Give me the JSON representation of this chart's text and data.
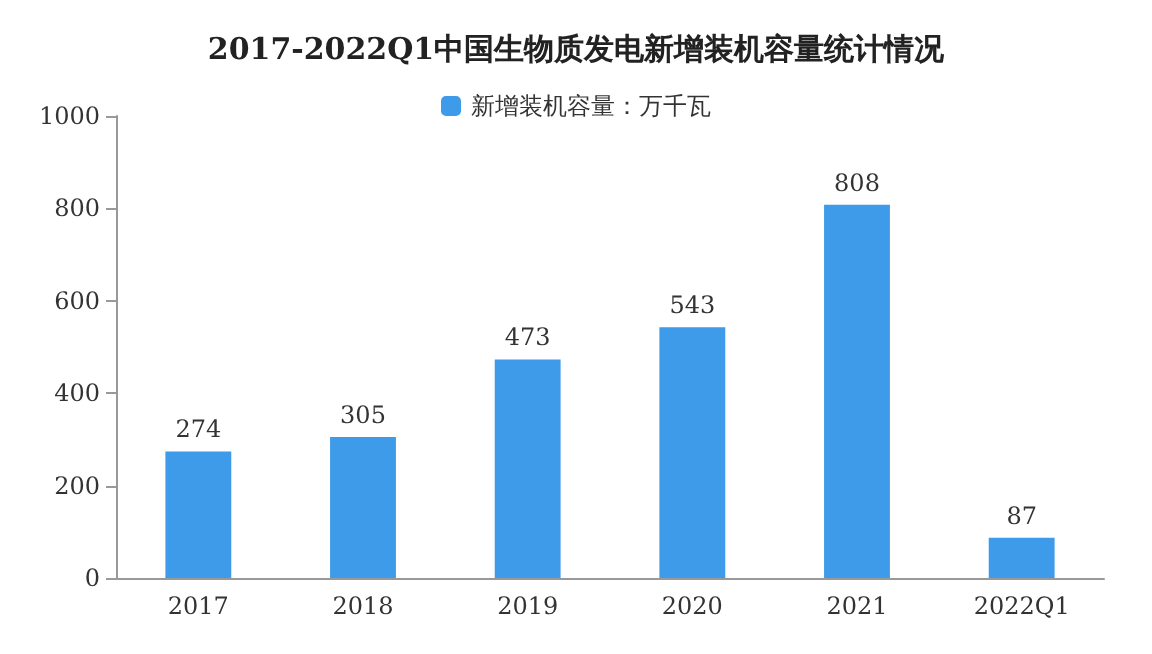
{
  "chart_data": {
    "type": "bar",
    "title": "2017-2022Q1中国生物质发电新增装机容量统计情况",
    "categories": [
      "2017",
      "2018",
      "2019",
      "2020",
      "2021",
      "2022Q1"
    ],
    "series": [
      {
        "name": "新增装机容量：万千瓦",
        "color": "#3d9be9",
        "values": [
          274,
          305,
          473,
          543,
          808,
          87
        ]
      }
    ],
    "ylim": [
      0,
      1000
    ],
    "yticks": [
      0,
      200,
      400,
      600,
      800,
      1000
    ],
    "grid": false,
    "legend": "top",
    "data_labels": true
  }
}
